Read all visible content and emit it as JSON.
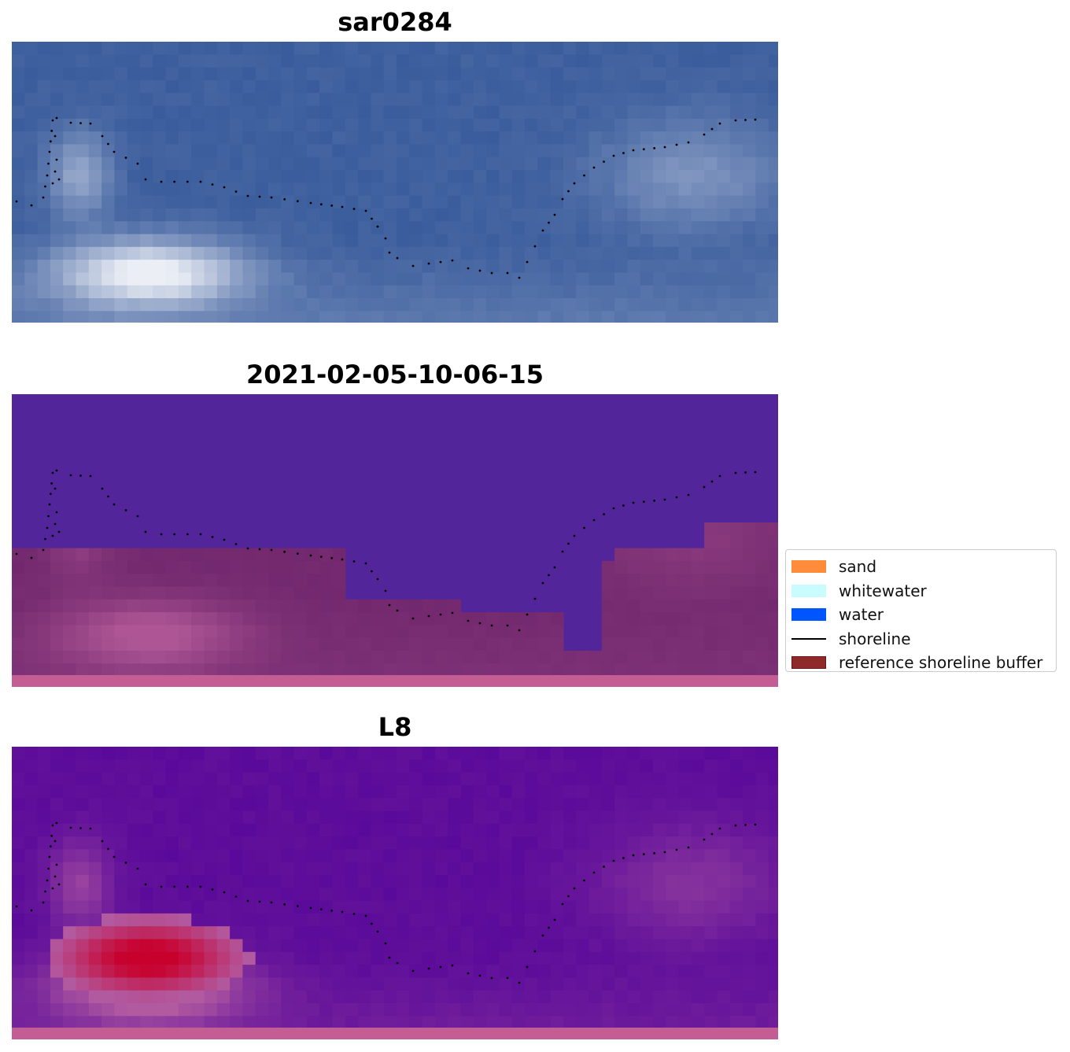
{
  "panels": [
    {
      "title": "sar0284"
    },
    {
      "title": "2021-02-05-10-06-15"
    },
    {
      "title": "L8"
    }
  ],
  "legend": {
    "items": [
      {
        "label": "sand",
        "color": "#ff8c3b",
        "kind": "patch"
      },
      {
        "label": "whitewater",
        "color": "#c8fcff",
        "kind": "patch"
      },
      {
        "label": "water",
        "color": "#0055ff",
        "kind": "patch"
      },
      {
        "label": "shoreline",
        "color": "#000000",
        "kind": "line"
      },
      {
        "label": "reference shoreline buffer",
        "color": "#8e2a2a",
        "kind": "patch"
      }
    ]
  },
  "colors": {
    "sar_base": "#3c5f9e",
    "classified_water": "#52259a",
    "classified_buffer": "#72286e",
    "l8_base": "#5a0a9a",
    "l8_hot": "#c8002c",
    "shoreline_dots": "#000000"
  }
}
